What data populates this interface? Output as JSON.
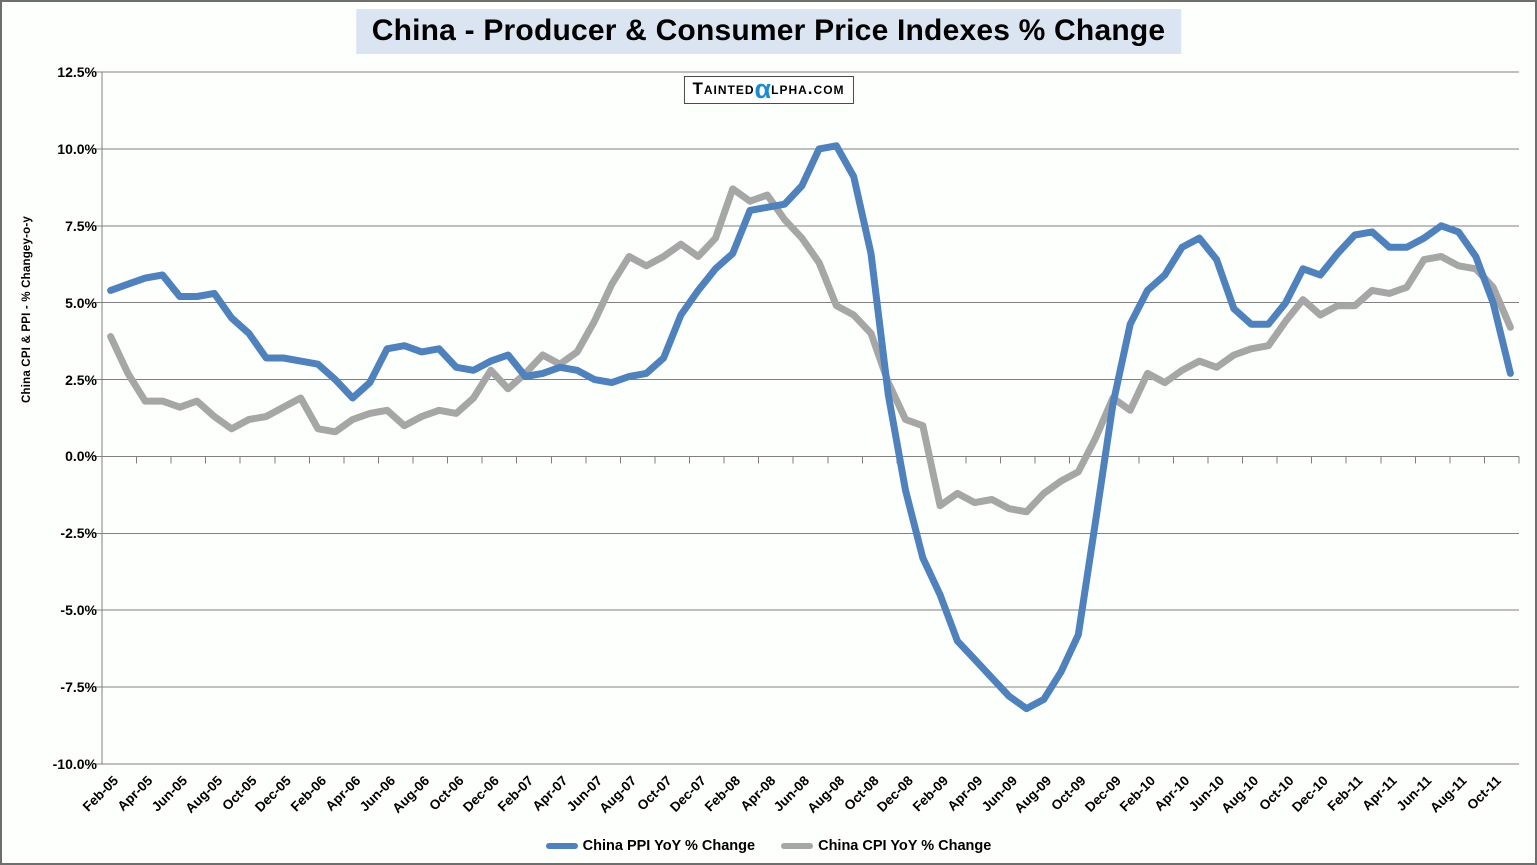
{
  "title": "China - Producer & Consumer Price Indexes % Change",
  "watermark": {
    "left": "Tainted",
    "alpha": "α",
    "right": "lpha.com"
  },
  "colors": {
    "ppi_line": "#4F81BD",
    "cpi_line": "#A6A6A6",
    "gridline": "#808080",
    "title_highlight": "#DBE5F1",
    "watermark_alpha_blue": "#1E8BD1"
  },
  "chart_data": {
    "type": "line",
    "title": "China - Producer & Consumer Price Indexes % Change",
    "ylabel": "China CPI & PPI - % Changey-o-y",
    "ylim": [
      -10.0,
      12.5
    ],
    "ytick_step": 2.5,
    "grid": "horizontal",
    "legend_position": "bottom",
    "y_ticks": [
      "12.5%",
      "10.0%",
      "7.5%",
      "5.0%",
      "2.5%",
      "0.0%",
      "-2.5%",
      "-5.0%",
      "-7.5%",
      "-10.0%"
    ],
    "x_tick_labels": [
      "Feb-05",
      "Apr-05",
      "Jun-05",
      "Aug-05",
      "Oct-05",
      "Dec-05",
      "Feb-06",
      "Apr-06",
      "Jun-06",
      "Aug-06",
      "Oct-06",
      "Dec-06",
      "Feb-07",
      "Apr-07",
      "Jun-07",
      "Aug-07",
      "Oct-07",
      "Dec-07",
      "Feb-08",
      "Apr-08",
      "Jun-08",
      "Aug-08",
      "Oct-08",
      "Dec-08",
      "Feb-09",
      "Apr-09",
      "Jun-09",
      "Aug-09",
      "Oct-09",
      "Dec-09",
      "Feb-10",
      "Apr-10",
      "Jun-10",
      "Aug-10",
      "Oct-10",
      "Dec-10",
      "Feb-11",
      "Apr-11",
      "Jun-11",
      "Aug-11",
      "Oct-11"
    ],
    "months": [
      "Feb-05",
      "Mar-05",
      "Apr-05",
      "May-05",
      "Jun-05",
      "Jul-05",
      "Aug-05",
      "Sep-05",
      "Oct-05",
      "Nov-05",
      "Dec-05",
      "Jan-06",
      "Feb-06",
      "Mar-06",
      "Apr-06",
      "May-06",
      "Jun-06",
      "Jul-06",
      "Aug-06",
      "Sep-06",
      "Oct-06",
      "Nov-06",
      "Dec-06",
      "Jan-07",
      "Feb-07",
      "Mar-07",
      "Apr-07",
      "May-07",
      "Jun-07",
      "Jul-07",
      "Aug-07",
      "Sep-07",
      "Oct-07",
      "Nov-07",
      "Dec-07",
      "Jan-08",
      "Feb-08",
      "Mar-08",
      "Apr-08",
      "May-08",
      "Jun-08",
      "Jul-08",
      "Aug-08",
      "Sep-08",
      "Oct-08",
      "Nov-08",
      "Dec-08",
      "Jan-09",
      "Feb-09",
      "Mar-09",
      "Apr-09",
      "May-09",
      "Jun-09",
      "Jul-09",
      "Aug-09",
      "Sep-09",
      "Oct-09",
      "Nov-09",
      "Dec-09",
      "Jan-10",
      "Feb-10",
      "Mar-10",
      "Apr-10",
      "May-10",
      "Jun-10",
      "Jul-10",
      "Aug-10",
      "Sep-10",
      "Oct-10",
      "Nov-10",
      "Dec-10",
      "Jan-11",
      "Feb-11",
      "Mar-11",
      "Apr-11",
      "May-11",
      "Jun-11",
      "Jul-11",
      "Aug-11",
      "Sep-11",
      "Oct-11",
      "Nov-11"
    ],
    "series": [
      {
        "name": "China PPI YoY % Change",
        "color": "#4F81BD",
        "values": [
          5.4,
          5.6,
          5.8,
          5.9,
          5.2,
          5.2,
          5.3,
          4.5,
          4.0,
          3.2,
          3.2,
          3.1,
          3.0,
          2.5,
          1.9,
          2.4,
          3.5,
          3.6,
          3.4,
          3.5,
          2.9,
          2.8,
          3.1,
          3.3,
          2.6,
          2.7,
          2.9,
          2.8,
          2.5,
          2.4,
          2.6,
          2.7,
          3.2,
          4.6,
          5.4,
          6.1,
          6.6,
          8.0,
          8.1,
          8.2,
          8.8,
          10.0,
          10.1,
          9.1,
          6.6,
          2.0,
          -1.1,
          -3.3,
          -4.5,
          -6.0,
          -6.6,
          -7.2,
          -7.8,
          -8.2,
          -7.9,
          -7.0,
          -5.8,
          -2.1,
          1.7,
          4.3,
          5.4,
          5.9,
          6.8,
          7.1,
          6.4,
          4.8,
          4.3,
          4.3,
          5.0,
          6.1,
          5.9,
          6.6,
          7.2,
          7.3,
          6.8,
          6.8,
          7.1,
          7.5,
          7.3,
          6.5,
          5.0,
          2.7
        ]
      },
      {
        "name": "China CPI YoY % Change",
        "color": "#A6A6A6",
        "values": [
          3.9,
          2.7,
          1.8,
          1.8,
          1.6,
          1.8,
          1.3,
          0.9,
          1.2,
          1.3,
          1.6,
          1.9,
          0.9,
          0.8,
          1.2,
          1.4,
          1.5,
          1.0,
          1.3,
          1.5,
          1.4,
          1.9,
          2.8,
          2.2,
          2.7,
          3.3,
          3.0,
          3.4,
          4.4,
          5.6,
          6.5,
          6.2,
          6.5,
          6.9,
          6.5,
          7.1,
          8.7,
          8.3,
          8.5,
          7.7,
          7.1,
          6.3,
          4.9,
          4.6,
          4.0,
          2.4,
          1.2,
          1.0,
          -1.6,
          -1.2,
          -1.5,
          -1.4,
          -1.7,
          -1.8,
          -1.2,
          -0.8,
          -0.5,
          0.6,
          1.9,
          1.5,
          2.7,
          2.4,
          2.8,
          3.1,
          2.9,
          3.3,
          3.5,
          3.6,
          4.4,
          5.1,
          4.6,
          4.9,
          4.9,
          5.4,
          5.3,
          5.5,
          6.4,
          6.5,
          6.2,
          6.1,
          5.5,
          4.2
        ]
      }
    ]
  }
}
